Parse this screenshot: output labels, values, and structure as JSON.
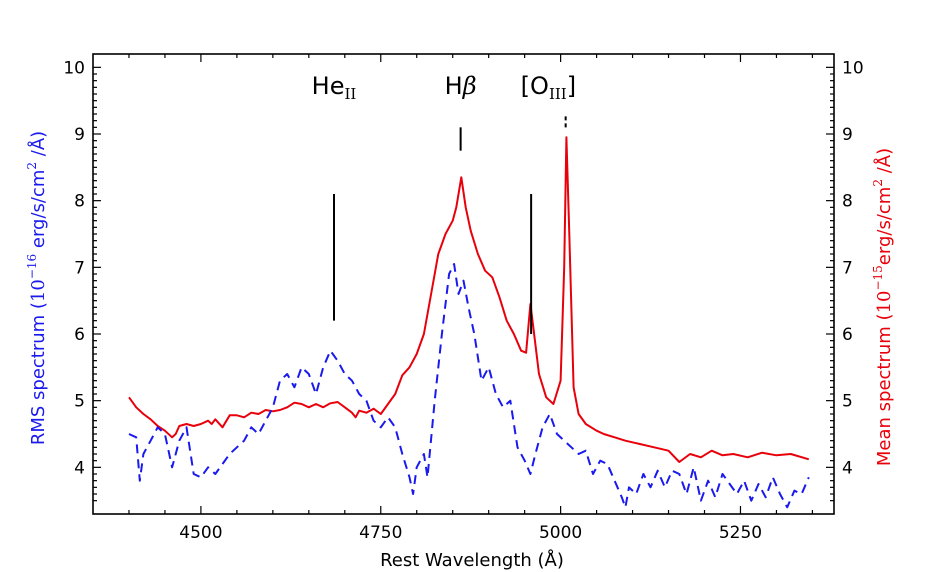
{
  "chart_data": {
    "type": "line",
    "xlabel": "Rest Wavelength (Å)",
    "ylabel_left": {
      "prefix": "RMS spectrum (",
      "base": "10",
      "exponent": "−16",
      "units_a": " erg/s/cm",
      "units_sq": "2",
      "units_b": " /Å)"
    },
    "ylabel_right": {
      "prefix": "Mean spectrum (",
      "base": "10",
      "exponent": "−15",
      "units_a": "erg/s/cm",
      "units_sq": "2",
      "units_b": " /Å)"
    },
    "xlim": [
      4350,
      5380
    ],
    "ylim": [
      3.3,
      10.2
    ],
    "x_ticks": [
      4500,
      4750,
      5000,
      5250
    ],
    "x_tick_labels": [
      "4500",
      "4750",
      "5000",
      "5250"
    ],
    "y_ticks": [
      4,
      5,
      6,
      7,
      8,
      9,
      10
    ],
    "y_tick_labels": [
      "4",
      "5",
      "6",
      "7",
      "8",
      "9",
      "10"
    ],
    "series": [
      {
        "name": "Mean spectrum",
        "color": "#e8000b",
        "dash": "solid",
        "points": [
          [
            4400,
            5.05
          ],
          [
            4410,
            4.9
          ],
          [
            4420,
            4.8
          ],
          [
            4430,
            4.72
          ],
          [
            4440,
            4.62
          ],
          [
            4450,
            4.55
          ],
          [
            4460,
            4.45
          ],
          [
            4465,
            4.5
          ],
          [
            4470,
            4.62
          ],
          [
            4480,
            4.65
          ],
          [
            4490,
            4.62
          ],
          [
            4500,
            4.65
          ],
          [
            4510,
            4.7
          ],
          [
            4515,
            4.65
          ],
          [
            4520,
            4.72
          ],
          [
            4530,
            4.6
          ],
          [
            4540,
            4.78
          ],
          [
            4550,
            4.78
          ],
          [
            4560,
            4.75
          ],
          [
            4570,
            4.82
          ],
          [
            4580,
            4.8
          ],
          [
            4590,
            4.86
          ],
          [
            4600,
            4.84
          ],
          [
            4610,
            4.86
          ],
          [
            4620,
            4.9
          ],
          [
            4630,
            4.97
          ],
          [
            4640,
            4.95
          ],
          [
            4650,
            4.9
          ],
          [
            4660,
            4.95
          ],
          [
            4670,
            4.9
          ],
          [
            4680,
            4.96
          ],
          [
            4690,
            4.98
          ],
          [
            4700,
            4.9
          ],
          [
            4710,
            4.82
          ],
          [
            4715,
            4.75
          ],
          [
            4720,
            4.85
          ],
          [
            4730,
            4.82
          ],
          [
            4740,
            4.88
          ],
          [
            4750,
            4.8
          ],
          [
            4760,
            4.95
          ],
          [
            4770,
            5.1
          ],
          [
            4780,
            5.38
          ],
          [
            4790,
            5.5
          ],
          [
            4800,
            5.7
          ],
          [
            4810,
            6.0
          ],
          [
            4820,
            6.6
          ],
          [
            4830,
            7.2
          ],
          [
            4840,
            7.5
          ],
          [
            4850,
            7.7
          ],
          [
            4855,
            7.9
          ],
          [
            4862,
            8.35
          ],
          [
            4868,
            7.9
          ],
          [
            4875,
            7.55
          ],
          [
            4885,
            7.2
          ],
          [
            4895,
            6.95
          ],
          [
            4905,
            6.85
          ],
          [
            4915,
            6.55
          ],
          [
            4925,
            6.2
          ],
          [
            4935,
            6.0
          ],
          [
            4945,
            5.75
          ],
          [
            4952,
            5.72
          ],
          [
            4958,
            6.45
          ],
          [
            4962,
            6.1
          ],
          [
            4970,
            5.4
          ],
          [
            4980,
            5.05
          ],
          [
            4990,
            4.95
          ],
          [
            5000,
            5.3
          ],
          [
            5005,
            7.0
          ],
          [
            5008,
            8.95
          ],
          [
            5012,
            7.5
          ],
          [
            5018,
            5.2
          ],
          [
            5025,
            4.8
          ],
          [
            5035,
            4.65
          ],
          [
            5050,
            4.55
          ],
          [
            5060,
            4.5
          ],
          [
            5075,
            4.45
          ],
          [
            5090,
            4.4
          ],
          [
            5110,
            4.35
          ],
          [
            5130,
            4.3
          ],
          [
            5150,
            4.25
          ],
          [
            5165,
            4.08
          ],
          [
            5180,
            4.2
          ],
          [
            5195,
            4.15
          ],
          [
            5210,
            4.25
          ],
          [
            5225,
            4.18
          ],
          [
            5240,
            4.2
          ],
          [
            5260,
            4.15
          ],
          [
            5280,
            4.22
          ],
          [
            5300,
            4.18
          ],
          [
            5320,
            4.2
          ],
          [
            5345,
            4.12
          ]
        ]
      },
      {
        "name": "RMS spectrum",
        "color": "#1a1aee",
        "dash": "dashed",
        "points": [
          [
            4400,
            4.5
          ],
          [
            4410,
            4.45
          ],
          [
            4415,
            3.8
          ],
          [
            4420,
            4.2
          ],
          [
            4430,
            4.4
          ],
          [
            4440,
            4.6
          ],
          [
            4450,
            4.5
          ],
          [
            4460,
            4.0
          ],
          [
            4470,
            4.4
          ],
          [
            4480,
            4.6
          ],
          [
            4490,
            3.9
          ],
          [
            4500,
            3.85
          ],
          [
            4510,
            4.0
          ],
          [
            4520,
            3.9
          ],
          [
            4530,
            4.05
          ],
          [
            4540,
            4.2
          ],
          [
            4550,
            4.3
          ],
          [
            4560,
            4.4
          ],
          [
            4570,
            4.6
          ],
          [
            4580,
            4.5
          ],
          [
            4590,
            4.7
          ],
          [
            4600,
            4.9
          ],
          [
            4610,
            5.3
          ],
          [
            4620,
            5.4
          ],
          [
            4630,
            5.2
          ],
          [
            4640,
            5.5
          ],
          [
            4650,
            5.4
          ],
          [
            4660,
            5.1
          ],
          [
            4670,
            5.5
          ],
          [
            4680,
            5.75
          ],
          [
            4690,
            5.6
          ],
          [
            4700,
            5.4
          ],
          [
            4710,
            5.3
          ],
          [
            4720,
            5.1
          ],
          [
            4730,
            5.0
          ],
          [
            4740,
            4.7
          ],
          [
            4750,
            4.6
          ],
          [
            4760,
            4.75
          ],
          [
            4770,
            4.6
          ],
          [
            4780,
            4.2
          ],
          [
            4790,
            3.85
          ],
          [
            4795,
            3.6
          ],
          [
            4800,
            4.0
          ],
          [
            4810,
            4.2
          ],
          [
            4815,
            3.85
          ],
          [
            4825,
            5.0
          ],
          [
            4835,
            6.0
          ],
          [
            4845,
            6.9
          ],
          [
            4852,
            7.05
          ],
          [
            4858,
            6.6
          ],
          [
            4865,
            6.8
          ],
          [
            4872,
            6.4
          ],
          [
            4880,
            6.0
          ],
          [
            4890,
            5.3
          ],
          [
            4900,
            5.5
          ],
          [
            4910,
            5.1
          ],
          [
            4920,
            4.9
          ],
          [
            4930,
            5.0
          ],
          [
            4940,
            4.3
          ],
          [
            4950,
            4.1
          ],
          [
            4958,
            3.9
          ],
          [
            4965,
            4.2
          ],
          [
            4975,
            4.6
          ],
          [
            4985,
            4.8
          ],
          [
            4995,
            4.5
          ],
          [
            5005,
            4.4
          ],
          [
            5015,
            4.3
          ],
          [
            5025,
            4.2
          ],
          [
            5035,
            4.25
          ],
          [
            5045,
            3.9
          ],
          [
            5055,
            4.1
          ],
          [
            5065,
            4.05
          ],
          [
            5075,
            3.8
          ],
          [
            5085,
            3.55
          ],
          [
            5090,
            3.4
          ],
          [
            5095,
            3.7
          ],
          [
            5105,
            3.6
          ],
          [
            5115,
            3.9
          ],
          [
            5125,
            3.7
          ],
          [
            5135,
            3.95
          ],
          [
            5145,
            3.7
          ],
          [
            5155,
            3.95
          ],
          [
            5165,
            3.9
          ],
          [
            5175,
            3.6
          ],
          [
            5185,
            4.0
          ],
          [
            5195,
            3.5
          ],
          [
            5205,
            3.8
          ],
          [
            5215,
            3.55
          ],
          [
            5225,
            3.9
          ],
          [
            5235,
            3.75
          ],
          [
            5245,
            3.6
          ],
          [
            5255,
            3.8
          ],
          [
            5265,
            3.5
          ],
          [
            5275,
            3.75
          ],
          [
            5285,
            3.55
          ],
          [
            5295,
            3.85
          ],
          [
            5305,
            3.6
          ],
          [
            5315,
            3.4
          ],
          [
            5325,
            3.65
          ],
          [
            5335,
            3.6
          ],
          [
            5345,
            3.85
          ]
        ]
      }
    ],
    "annotations": [
      {
        "name": "He",
        "sub": "II",
        "x": 4685,
        "y_bottom": 6.2,
        "y_top": 8.1,
        "dashed": false
      },
      {
        "name": "H",
        "greek": "β",
        "x": 4861,
        "y_bottom": 8.75,
        "y_top": 9.1,
        "dashed": false
      },
      {
        "name": "[O",
        "sub": "III",
        "suffix": "]",
        "x": 4959,
        "y_bottom": 6.0,
        "y_top": 8.1,
        "dashed": false,
        "second_x": 5007,
        "second_y_bottom": 9.1,
        "second_y_top": 9.3,
        "second_dashed": true
      }
    ]
  }
}
